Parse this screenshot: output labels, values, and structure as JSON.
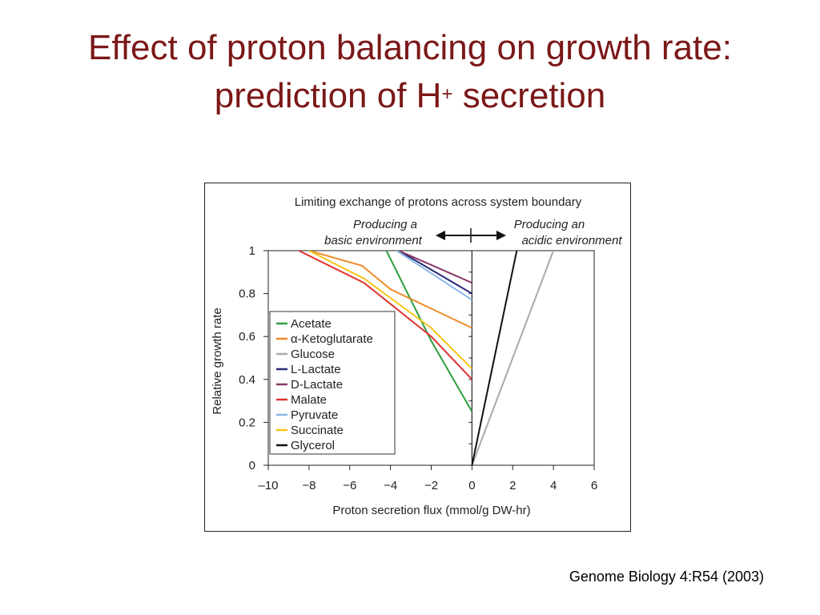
{
  "slide": {
    "title_main": "Effect of proton balancing on growth rate: prediction of H",
    "title_sup": "+",
    "title_tail": " secretion",
    "citation": "Genome Biology 4:R54 (2003)"
  },
  "chart_data": {
    "type": "line",
    "title": "Limiting exchange of protons across system boundary",
    "annotations": {
      "left_label": [
        "Producing a",
        "basic environment"
      ],
      "right_label": [
        "Producing an",
        "acidic environment"
      ]
    },
    "xlabel": "Proton secretion flux (mmol/g DW-hr)",
    "ylabel": "Relative growth rate",
    "xlim": [
      -10,
      6
    ],
    "ylim": [
      0,
      1
    ],
    "xticks": [
      -10,
      -8,
      -6,
      -4,
      -2,
      0,
      2,
      4,
      6
    ],
    "xtick_labels": [
      "–10",
      "−8",
      "−6",
      "−4",
      "−2",
      "0",
      "2",
      "4",
      "6"
    ],
    "yticks": [
      0,
      0.2,
      0.4,
      0.6,
      0.8,
      1
    ],
    "ytick_labels": [
      "0",
      "0.2",
      "0.4",
      "0.6",
      "0.8",
      "1"
    ],
    "legend_position": "bottom-left",
    "series": [
      {
        "name": "Acetate",
        "label": "Acetate",
        "color": "#2e9e3e",
        "points": [
          [
            -4.2,
            1.0
          ],
          [
            -2.0,
            0.58
          ],
          [
            0,
            0.25
          ]
        ]
      },
      {
        "name": "α-Ketoglutarate",
        "label": "α-Ketoglutarate",
        "color": "#f08c2c",
        "points": [
          [
            -8.0,
            1.0
          ],
          [
            -5.4,
            0.93
          ],
          [
            -4.0,
            0.82
          ],
          [
            0,
            0.64
          ]
        ]
      },
      {
        "name": "Glucose",
        "label": "Glucose",
        "color": "#aaaaaa",
        "points": [
          [
            0,
            0.0
          ],
          [
            4.0,
            1.0
          ]
        ]
      },
      {
        "name": "L-Lactate",
        "label": "L-Lactate",
        "color": "#2a2a7a",
        "points": [
          [
            -3.6,
            1.0
          ],
          [
            0,
            0.8
          ]
        ]
      },
      {
        "name": "D-Lactate",
        "label": "D-Lactate",
        "color": "#8a3a6a",
        "points": [
          [
            -3.6,
            1.0
          ],
          [
            0,
            0.85
          ]
        ]
      },
      {
        "name": "Malate",
        "label": "Malate",
        "color": "#e03030",
        "points": [
          [
            -8.5,
            1.0
          ],
          [
            -5.3,
            0.85
          ],
          [
            -2.0,
            0.6
          ],
          [
            0,
            0.4
          ]
        ]
      },
      {
        "name": "Pyruvate",
        "label": "Pyruvate",
        "color": "#8ab8e6",
        "points": [
          [
            -3.7,
            1.0
          ],
          [
            0,
            0.77
          ]
        ]
      },
      {
        "name": "Succinate",
        "label": "Succinate",
        "color": "#f5c518",
        "points": [
          [
            -8.0,
            1.0
          ],
          [
            -5.3,
            0.87
          ],
          [
            -2.0,
            0.64
          ],
          [
            0,
            0.45
          ]
        ]
      },
      {
        "name": "Glycerol",
        "label": "Glycerol",
        "color": "#111111",
        "points": [
          [
            0,
            0.0
          ],
          [
            2.2,
            1.0
          ]
        ]
      }
    ]
  }
}
